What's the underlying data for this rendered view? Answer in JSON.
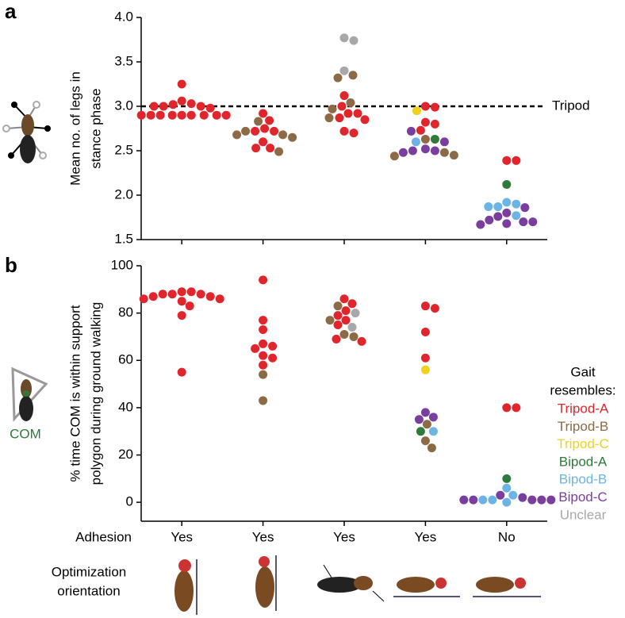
{
  "figure": {
    "panel_labels": [
      "a",
      "b"
    ],
    "com_label": "COM",
    "orientation_label": [
      "Optimization",
      "orientation"
    ]
  },
  "chart_data": [
    {
      "type": "scatter",
      "y_label": [
        "Mean no. of legs in",
        "stance phase"
      ],
      "ylim": [
        1.5,
        4.0
      ],
      "yticks": [
        {
          "value": 1.5,
          "label": "1.5"
        },
        {
          "value": 2.0,
          "label": "2.0"
        },
        {
          "value": 2.5,
          "label": "2.5"
        },
        {
          "value": 3.0,
          "label": "3.0"
        },
        {
          "value": 3.5,
          "label": "3.5"
        },
        {
          "value": 4.0,
          "label": "4.0"
        }
      ],
      "reference_line": {
        "value": 3,
        "label": "Tripod"
      },
      "series": [
        {
          "color": "#e0262c",
          "values": [
            [
              3.25,
              3.06,
              3.03,
              3.02,
              3.0,
              3.0,
              3.0,
              2.98,
              2.9,
              2.9,
              2.9,
              2.9,
              2.9,
              2.9,
              2.9,
              2.9,
              2.9
            ],
            [
              2.92,
              2.84,
              2.75,
              2.72,
              2.72,
              2.6,
              2.53,
              2.53
            ],
            [
              3.12,
              3.0,
              2.92,
              2.92,
              2.87,
              2.85,
              2.72,
              2.7
            ],
            [
              3.0,
              2.99,
              2.82,
              2.8,
              2.73
            ],
            [
              2.39,
              2.39
            ]
          ]
        },
        {
          "color": "#8b6a45",
          "values": [
            [],
            [
              2.83,
              2.72,
              2.68,
              2.65,
              2.68,
              2.49
            ],
            [
              3.35,
              3.32,
              3.04,
              2.97,
              2.87
            ],
            [
              2.63,
              2.48,
              2.45,
              2.44
            ],
            []
          ]
        },
        {
          "color": "#f2d11c",
          "values": [
            [],
            [],
            [],
            [
              2.95
            ],
            []
          ]
        },
        {
          "color": "#2e7a3a",
          "values": [
            [],
            [],
            [],
            [
              2.63
            ],
            [
              2.12
            ]
          ]
        },
        {
          "color": "#6cb4e6",
          "values": [
            [],
            [],
            [],
            [
              2.6
            ],
            [
              1.92,
              1.9,
              1.87,
              1.87,
              1.77
            ]
          ]
        },
        {
          "color": "#7a3e9e",
          "values": [
            [],
            [],
            [],
            [
              2.72,
              2.6,
              2.52,
              2.5,
              2.48,
              2.5
            ],
            [
              1.86,
              1.8,
              1.76,
              1.72,
              1.7,
              1.68,
              1.67,
              1.7
            ]
          ]
        },
        {
          "color": "#a8a8a8",
          "values": [
            [],
            [],
            [
              3.77,
              3.74,
              3.4
            ],
            [],
            []
          ]
        }
      ]
    },
    {
      "type": "scatter",
      "y_label": [
        "% time COM is within support",
        "polygon during ground walking"
      ],
      "x_label": "Adhesion",
      "categories": [
        "Yes",
        "Yes",
        "Yes",
        "Yes",
        "No"
      ],
      "ylim": [
        -8,
        100
      ],
      "yticks": [
        0,
        20,
        40,
        60,
        80,
        100
      ],
      "legend_title": [
        "Gait",
        "resembles:"
      ],
      "series": [
        {
          "name": "Tripod-A",
          "color": "#e0262c",
          "values": [
            [
              89,
              89,
              88,
              88,
              88,
              87,
              87,
              86,
              86,
              85,
              83,
              79,
              55
            ],
            [
              94,
              77,
              73,
              67,
              66,
              65,
              62,
              61,
              58
            ],
            [
              86,
              84,
              81,
              79,
              77,
              75,
              69,
              68
            ],
            [
              83,
              82,
              72,
              61
            ],
            [
              40,
              40
            ]
          ]
        },
        {
          "name": "Tripod-B",
          "color": "#8b6a45",
          "values": [
            [],
            [
              54,
              43
            ],
            [
              83,
              77,
              71,
              70
            ],
            [
              33,
              26,
              23
            ],
            []
          ]
        },
        {
          "name": "Tripod-C",
          "color": "#f2d11c",
          "values": [
            [],
            [],
            [],
            [
              56
            ],
            []
          ]
        },
        {
          "name": "Bipod-A",
          "color": "#2e7a3a",
          "values": [
            [],
            [],
            [],
            [
              30
            ],
            [
              10
            ]
          ]
        },
        {
          "name": "Bipod-B",
          "color": "#6cb4e6",
          "values": [
            [],
            [],
            [],
            [
              30
            ],
            [
              6,
              3,
              1,
              1,
              0
            ]
          ]
        },
        {
          "name": "Bipod-C",
          "color": "#7a3e9e",
          "values": [
            [],
            [],
            [],
            [
              38,
              36,
              35
            ],
            [
              1,
              1,
              1,
              1,
              1,
              2,
              3
            ]
          ]
        },
        {
          "name": "Unclear",
          "color": "#a8a8a8",
          "values": [
            [],
            [],
            [
              80,
              74
            ],
            [],
            []
          ]
        }
      ]
    }
  ]
}
